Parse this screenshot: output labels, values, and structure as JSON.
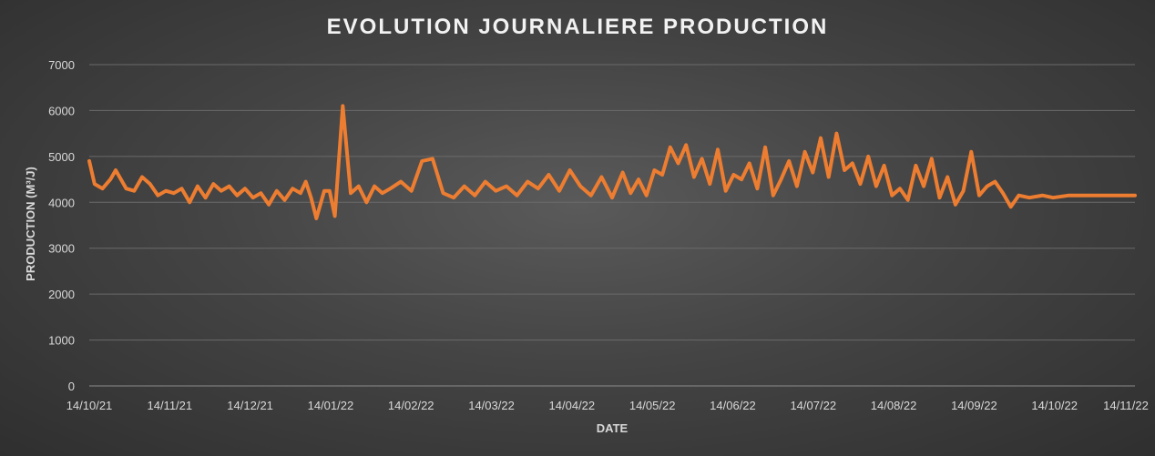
{
  "chart_data": {
    "type": "line",
    "title": "EVOLUTION JOURNALIERE PRODUCTION",
    "xlabel": "DATE",
    "ylabel": "PRODUCTION (M³/J)",
    "ylim": [
      0,
      7000
    ],
    "yticks": [
      0,
      1000,
      2000,
      3000,
      4000,
      5000,
      6000,
      7000
    ],
    "xlim": [
      "2021-10-14",
      "2022-11-14"
    ],
    "xtick_labels": [
      "14/10/21",
      "14/11/21",
      "14/12/21",
      "14/01/22",
      "14/02/22",
      "14/03/22",
      "14/04/22",
      "14/05/22",
      "14/06/22",
      "14/07/22",
      "14/08/22",
      "14/09/22",
      "14/10/22",
      "14/11/22"
    ],
    "grid": true,
    "legend": "none",
    "line_color": "#ED7D31",
    "series": [
      {
        "x": [
          "2021-10-14",
          "2021-10-16",
          "2021-10-19",
          "2021-10-22",
          "2021-10-24",
          "2021-10-26",
          "2021-10-28",
          "2021-10-31",
          "2021-11-03",
          "2021-11-06",
          "2021-11-09",
          "2021-11-12",
          "2021-11-15",
          "2021-11-18",
          "2021-11-21",
          "2021-11-24",
          "2021-11-27",
          "2021-11-30",
          "2021-12-03",
          "2021-12-06",
          "2021-12-09",
          "2021-12-12",
          "2021-12-15",
          "2021-12-18",
          "2021-12-21",
          "2021-12-24",
          "2021-12-27",
          "2021-12-30",
          "2022-01-02",
          "2022-01-04",
          "2022-01-06",
          "2022-01-08",
          "2022-01-11",
          "2022-01-13",
          "2022-01-15",
          "2022-01-18",
          "2022-01-21",
          "2022-01-24",
          "2022-01-27",
          "2022-01-30",
          "2022-02-02",
          "2022-02-05",
          "2022-02-09",
          "2022-02-13",
          "2022-02-17",
          "2022-02-21",
          "2022-02-25",
          "2022-03-01",
          "2022-03-05",
          "2022-03-09",
          "2022-03-13",
          "2022-03-17",
          "2022-03-21",
          "2022-03-25",
          "2022-03-29",
          "2022-04-02",
          "2022-04-06",
          "2022-04-10",
          "2022-04-14",
          "2022-04-18",
          "2022-04-22",
          "2022-04-26",
          "2022-04-30",
          "2022-05-04",
          "2022-05-07",
          "2022-05-10",
          "2022-05-13",
          "2022-05-16",
          "2022-05-19",
          "2022-05-22",
          "2022-05-25",
          "2022-05-28",
          "2022-05-31",
          "2022-06-03",
          "2022-06-06",
          "2022-06-09",
          "2022-06-12",
          "2022-06-15",
          "2022-06-18",
          "2022-06-21",
          "2022-06-24",
          "2022-06-27",
          "2022-06-30",
          "2022-07-03",
          "2022-07-06",
          "2022-07-09",
          "2022-07-12",
          "2022-07-15",
          "2022-07-18",
          "2022-07-21",
          "2022-07-24",
          "2022-07-27",
          "2022-07-30",
          "2022-08-02",
          "2022-08-05",
          "2022-08-08",
          "2022-08-11",
          "2022-08-14",
          "2022-08-17",
          "2022-08-20",
          "2022-08-23",
          "2022-08-26",
          "2022-08-29",
          "2022-09-01",
          "2022-09-04",
          "2022-09-07",
          "2022-09-10",
          "2022-09-13",
          "2022-09-16",
          "2022-09-19",
          "2022-09-22",
          "2022-09-25",
          "2022-09-28",
          "2022-10-01",
          "2022-10-05",
          "2022-10-10",
          "2022-10-14",
          "2022-10-20",
          "2022-10-30",
          "2022-11-10",
          "2022-11-14"
        ],
        "y": [
          4900,
          4400,
          4300,
          4500,
          4700,
          4500,
          4300,
          4250,
          4550,
          4400,
          4150,
          4250,
          4200,
          4300,
          4000,
          4350,
          4100,
          4400,
          4250,
          4350,
          4150,
          4300,
          4100,
          4200,
          3950,
          4250,
          4050,
          4300,
          4200,
          4450,
          4100,
          3650,
          4250,
          4250,
          3700,
          6100,
          4200,
          4350,
          4000,
          4350,
          4200,
          4300,
          4450,
          4250,
          4900,
          4950,
          4200,
          4100,
          4350,
          4150,
          4450,
          4250,
          4350,
          4150,
          4450,
          4300,
          4600,
          4250,
          4700,
          4350,
          4150,
          4550,
          4100,
          4650,
          4200,
          4500,
          4150,
          4700,
          4600,
          5200,
          4850,
          5250,
          4550,
          4950,
          4400,
          5150,
          4250,
          4600,
          4500,
          4850,
          4300,
          5200,
          4150,
          4500,
          4900,
          4350,
          5100,
          4650,
          5400,
          4550,
          5500,
          4700,
          4850,
          4400,
          5000,
          4350,
          4800,
          4150,
          4300,
          4050,
          4800,
          4350,
          4950,
          4100,
          4550,
          3950,
          4250,
          5100,
          4150,
          4350,
          4450,
          4200,
          3900,
          4150,
          4100,
          4150,
          4100,
          4150,
          4150,
          4150,
          4150
        ]
      }
    ]
  }
}
